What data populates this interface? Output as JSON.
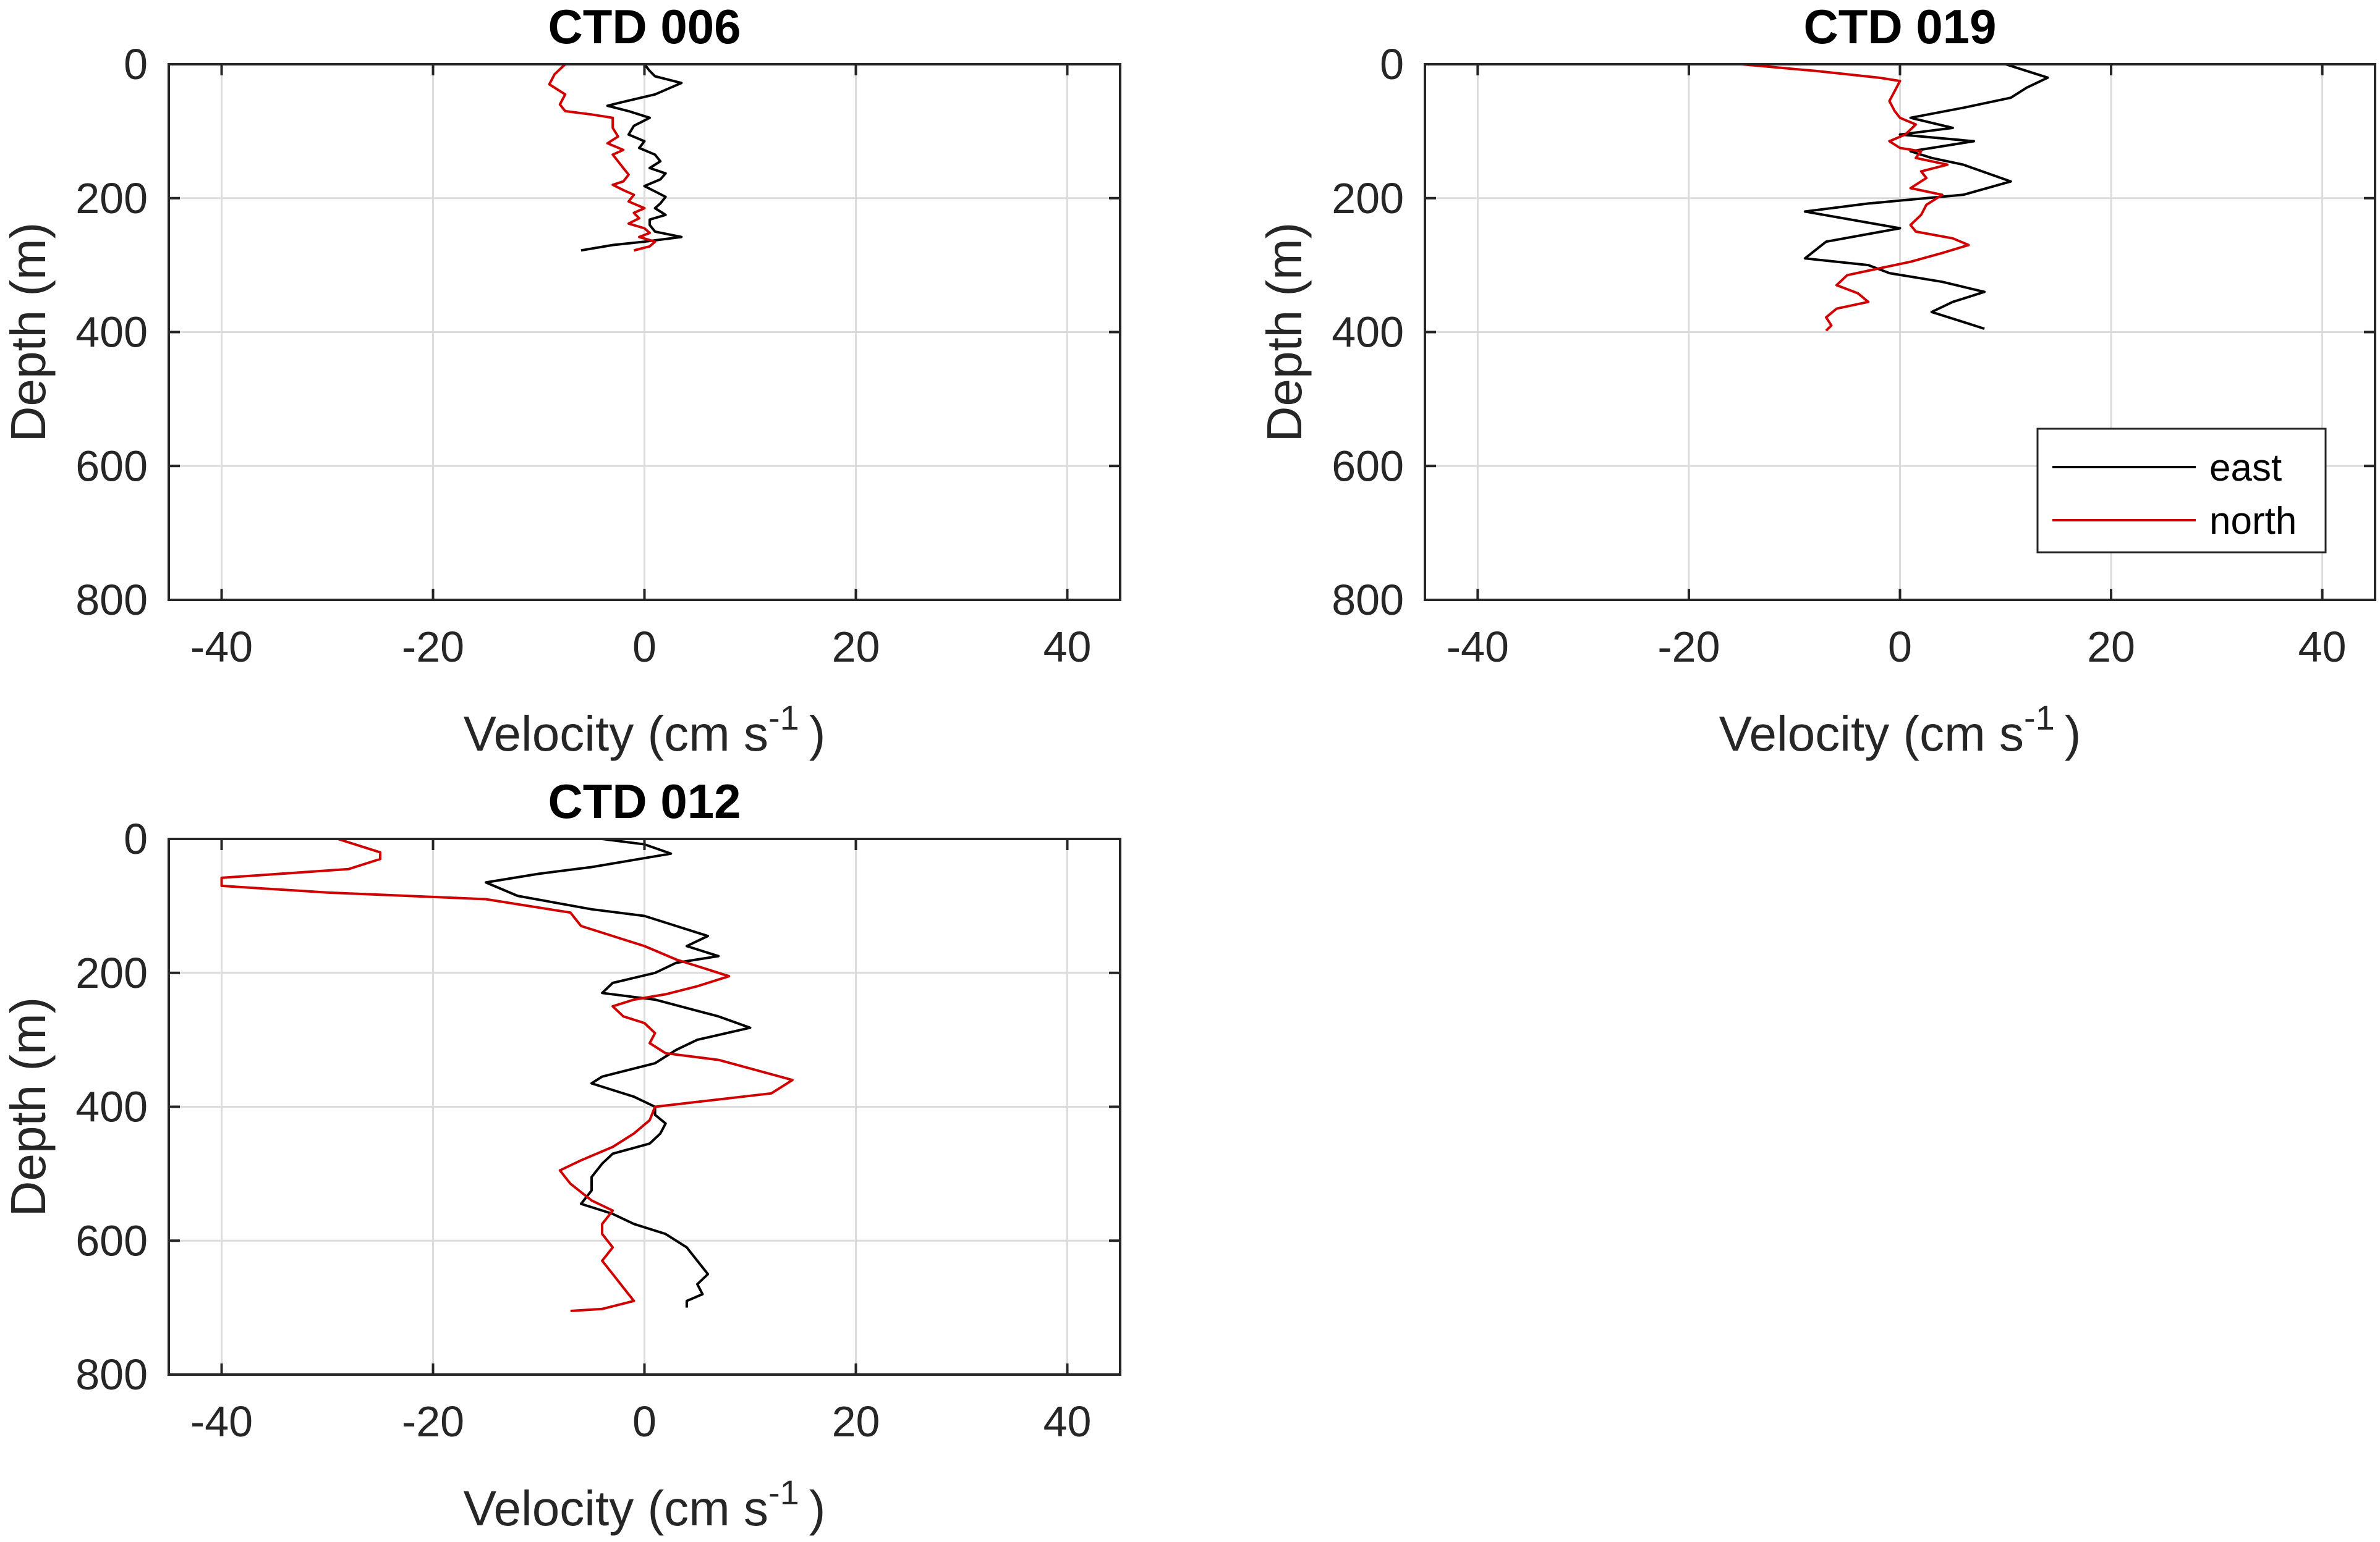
{
  "chart_data": [
    {
      "type": "line",
      "title": "CTD 006",
      "xlabel": "Velocity (cm s",
      "xlabel_superscript": "-1",
      "xlabel_close": ")",
      "ylabel": "Depth (m)",
      "xlim": [
        -45,
        45
      ],
      "ylim": [
        0,
        800
      ],
      "y_reversed": true,
      "xticks": [
        -40,
        -20,
        0,
        20,
        40
      ],
      "yticks": [
        0,
        200,
        400,
        600,
        800
      ],
      "grid": true,
      "legend": null,
      "series": [
        {
          "name": "east",
          "color": "#000000",
          "points": [
            [
              0,
              0
            ],
            [
              0.5,
              10
            ],
            [
              1,
              18
            ],
            [
              3.5,
              28
            ],
            [
              1,
              45
            ],
            [
              -2.5,
              58
            ],
            [
              -3.5,
              62
            ],
            [
              -1.5,
              70
            ],
            [
              0.5,
              80
            ],
            [
              -1,
              92
            ],
            [
              -1.5,
              105
            ],
            [
              0,
              115
            ],
            [
              -0.5,
              125
            ],
            [
              1,
              135
            ],
            [
              1.5,
              145
            ],
            [
              0.5,
              155
            ],
            [
              2,
              163
            ],
            [
              1.5,
              172
            ],
            [
              0,
              182
            ],
            [
              1,
              190
            ],
            [
              2,
              198
            ],
            [
              1.5,
              208
            ],
            [
              1,
              215
            ],
            [
              2,
              225
            ],
            [
              0.5,
              232
            ],
            [
              0.5,
              240
            ],
            [
              1,
              250
            ],
            [
              3.5,
              258
            ],
            [
              0,
              265
            ],
            [
              -3,
              270
            ],
            [
              -6,
              278
            ]
          ]
        },
        {
          "name": "north",
          "color": "#d00000",
          "points": [
            [
              -7.5,
              0
            ],
            [
              -8.5,
              15
            ],
            [
              -9,
              30
            ],
            [
              -7.5,
              45
            ],
            [
              -8,
              60
            ],
            [
              -7.5,
              70
            ],
            [
              -5,
              75
            ],
            [
              -3,
              80
            ],
            [
              -3,
              95
            ],
            [
              -2.5,
              108
            ],
            [
              -3.5,
              118
            ],
            [
              -2,
              128
            ],
            [
              -3,
              135
            ],
            [
              -2.5,
              145
            ],
            [
              -2,
              155
            ],
            [
              -1.5,
              165
            ],
            [
              -2,
              175
            ],
            [
              -3,
              180
            ],
            [
              -2,
              188
            ],
            [
              -1,
              195
            ],
            [
              -1.5,
              205
            ],
            [
              0,
              215
            ],
            [
              -1,
              222
            ],
            [
              -0.5,
              230
            ],
            [
              -1.5,
              238
            ],
            [
              0,
              245
            ],
            [
              0.5,
              252
            ],
            [
              -0.5,
              258
            ],
            [
              1,
              265
            ],
            [
              0.5,
              272
            ],
            [
              -1,
              278
            ]
          ]
        }
      ]
    },
    {
      "type": "line",
      "title": "CTD 019",
      "xlabel": "Velocity (cm s",
      "xlabel_superscript": "-1",
      "xlabel_close": ")",
      "ylabel": "Depth (m)",
      "xlim": [
        -45,
        45
      ],
      "ylim": [
        0,
        800
      ],
      "y_reversed": true,
      "xticks": [
        -40,
        -20,
        0,
        20,
        40
      ],
      "yticks": [
        0,
        200,
        400,
        600,
        800
      ],
      "grid": true,
      "legend": {
        "position": "bottom-right",
        "entries": [
          {
            "label": "east",
            "color": "#000000"
          },
          {
            "label": "north",
            "color": "#d00000"
          }
        ]
      },
      "series": [
        {
          "name": "east",
          "color": "#000000",
          "points": [
            [
              10,
              0
            ],
            [
              14,
              20
            ],
            [
              12,
              35
            ],
            [
              10.5,
              50
            ],
            [
              6,
              65
            ],
            [
              1,
              80
            ],
            [
              5,
              95
            ],
            [
              0,
              105
            ],
            [
              7,
              115
            ],
            [
              3,
              125
            ],
            [
              1,
              130
            ],
            [
              3,
              140
            ],
            [
              6,
              150
            ],
            [
              10.5,
              175
            ],
            [
              6,
              195
            ],
            [
              -3,
              208
            ],
            [
              -9,
              220
            ],
            [
              0,
              245
            ],
            [
              -7,
              265
            ],
            [
              -9,
              290
            ],
            [
              -3,
              300
            ],
            [
              -1,
              312
            ],
            [
              4,
              325
            ],
            [
              8,
              340
            ],
            [
              5,
              355
            ],
            [
              3,
              370
            ],
            [
              6,
              385
            ],
            [
              8,
              395
            ]
          ]
        },
        {
          "name": "north",
          "color": "#d00000",
          "points": [
            [
              -15,
              0
            ],
            [
              -8,
              10
            ],
            [
              -2,
              20
            ],
            [
              0,
              25
            ],
            [
              -0.5,
              40
            ],
            [
              -1,
              55
            ],
            [
              -0.5,
              70
            ],
            [
              0,
              80
            ],
            [
              1.5,
              90
            ],
            [
              0.5,
              105
            ],
            [
              -1,
              115
            ],
            [
              0,
              125
            ],
            [
              2,
              130
            ],
            [
              1.5,
              140
            ],
            [
              4.5,
              150
            ],
            [
              2,
              160
            ],
            [
              2.5,
              170
            ],
            [
              1,
              185
            ],
            [
              4,
              195
            ],
            [
              2.5,
              210
            ],
            [
              2,
              225
            ],
            [
              1,
              240
            ],
            [
              1.5,
              250
            ],
            [
              5,
              260
            ],
            [
              6.5,
              270
            ],
            [
              4,
              282
            ],
            [
              1,
              295
            ],
            [
              -2,
              305
            ],
            [
              -5,
              315
            ],
            [
              -6,
              330
            ],
            [
              -4,
              342
            ],
            [
              -3,
              355
            ],
            [
              -6,
              365
            ],
            [
              -7,
              378
            ],
            [
              -6.5,
              390
            ],
            [
              -7,
              398
            ]
          ]
        }
      ]
    },
    {
      "type": "line",
      "title": "CTD 012",
      "xlabel": "Velocity (cm s",
      "xlabel_superscript": "-1",
      "xlabel_close": ")",
      "ylabel": "Depth (m)",
      "xlim": [
        -45,
        45
      ],
      "ylim": [
        0,
        800
      ],
      "y_reversed": true,
      "xticks": [
        -40,
        -20,
        0,
        20,
        40
      ],
      "yticks": [
        0,
        200,
        400,
        600,
        800
      ],
      "grid": true,
      "legend": null,
      "series": [
        {
          "name": "east",
          "color": "#000000",
          "points": [
            [
              -4,
              0
            ],
            [
              0,
              8
            ],
            [
              2.5,
              22
            ],
            [
              -5,
              42
            ],
            [
              -10,
              52
            ],
            [
              -15,
              65
            ],
            [
              -12,
              85
            ],
            [
              -5,
              105
            ],
            [
              0,
              115
            ],
            [
              3,
              130
            ],
            [
              6,
              145
            ],
            [
              4,
              160
            ],
            [
              7,
              175
            ],
            [
              3,
              185
            ],
            [
              1,
              200
            ],
            [
              -3,
              215
            ],
            [
              -4,
              230
            ],
            [
              1,
              240
            ],
            [
              7,
              265
            ],
            [
              10,
              282
            ],
            [
              5,
              300
            ],
            [
              3,
              315
            ],
            [
              1,
              335
            ],
            [
              -4,
              355
            ],
            [
              -5,
              365
            ],
            [
              -1,
              385
            ],
            [
              1,
              400
            ],
            [
              1,
              412
            ],
            [
              2,
              425
            ],
            [
              1.5,
              440
            ],
            [
              0.5,
              455
            ],
            [
              -3,
              470
            ],
            [
              -4,
              485
            ],
            [
              -5,
              505
            ],
            [
              -5,
              525
            ],
            [
              -6,
              545
            ],
            [
              -3,
              560
            ],
            [
              -1,
              575
            ],
            [
              2,
              590
            ],
            [
              4,
              610
            ],
            [
              5,
              630
            ],
            [
              6,
              650
            ],
            [
              5,
              665
            ],
            [
              5.5,
              680
            ],
            [
              4,
              690
            ],
            [
              4,
              700
            ]
          ]
        },
        {
          "name": "north",
          "color": "#d00000",
          "points": [
            [
              -29,
              0
            ],
            [
              -25,
              20
            ],
            [
              -25,
              30
            ],
            [
              -28,
              45
            ],
            [
              -40,
              58
            ],
            [
              -40,
              70
            ],
            [
              -30,
              80
            ],
            [
              -15,
              90
            ],
            [
              -7,
              110
            ],
            [
              -6,
              130
            ],
            [
              -3,
              145
            ],
            [
              0,
              160
            ],
            [
              3,
              180
            ],
            [
              6,
              195
            ],
            [
              8,
              205
            ],
            [
              5,
              220
            ],
            [
              2,
              232
            ],
            [
              -1,
              240
            ],
            [
              -3,
              250
            ],
            [
              -2,
              265
            ],
            [
              0,
              275
            ],
            [
              1,
              290
            ],
            [
              0.5,
              305
            ],
            [
              2,
              320
            ],
            [
              7,
              330
            ],
            [
              14,
              360
            ],
            [
              12,
              380
            ],
            [
              1,
              400
            ],
            [
              0.5,
              420
            ],
            [
              -1,
              440
            ],
            [
              -3,
              460
            ],
            [
              -6,
              480
            ],
            [
              -8,
              495
            ],
            [
              -7,
              515
            ],
            [
              -5,
              540
            ],
            [
              -3,
              555
            ],
            [
              -4,
              575
            ],
            [
              -4,
              590
            ],
            [
              -3,
              610
            ],
            [
              -4,
              630
            ],
            [
              -3,
              650
            ],
            [
              -2,
              670
            ],
            [
              -1,
              690
            ],
            [
              -4,
              702
            ],
            [
              -7,
              705
            ]
          ]
        }
      ]
    }
  ]
}
